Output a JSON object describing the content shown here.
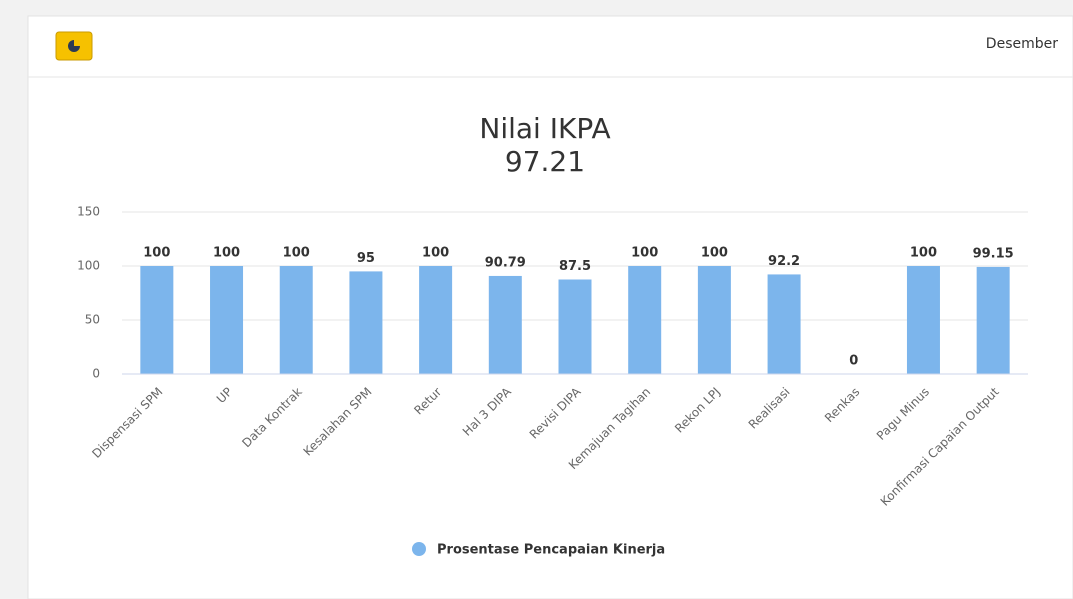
{
  "header": {
    "period": "Desember"
  },
  "chart_data": {
    "type": "bar",
    "title": "Nilai IKPA",
    "subtitle": "97.21",
    "categories": [
      "Dispensasi SPM",
      "UP",
      "Data Kontrak",
      "Kesalahan SPM",
      "Retur",
      "Hal 3 DIPA",
      "Revisi DIPA",
      "Kemajuan Tagihan",
      "Rekon LPJ",
      "Realisasi",
      "Renkas",
      "Pagu Minus",
      "Konfirmasi Capaian Output"
    ],
    "series": [
      {
        "name": "Prosentase Pencapaian Kinerja",
        "color": "#7cb5ec",
        "values": [
          100,
          100,
          100,
          95,
          100,
          90.79,
          87.5,
          100,
          100,
          92.2,
          0,
          100,
          99.15
        ]
      }
    ],
    "ylim": [
      0,
      150
    ],
    "yticks": [
      0,
      50,
      100,
      150
    ],
    "grid": true,
    "legend": "bottom"
  }
}
